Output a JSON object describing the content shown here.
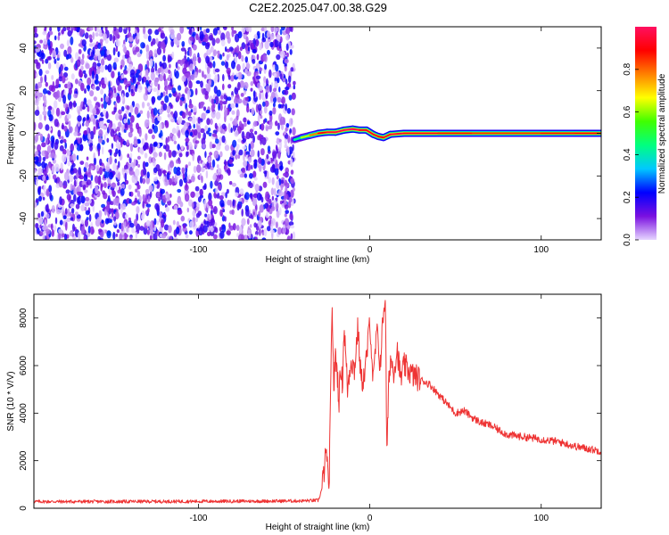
{
  "title": "C2E2.2025.047.00.38.G29",
  "chart_data": [
    {
      "type": "heatmap",
      "name": "spectrogram",
      "xlabel": "Height of straight line (km)",
      "ylabel": "Frequency (Hz)",
      "xlim": [
        -196,
        135
      ],
      "ylim": [
        -50,
        50
      ],
      "xticks": [
        -100,
        0,
        100
      ],
      "yticks": [
        -40,
        -20,
        0,
        20,
        40
      ],
      "grid": false,
      "noise_region_x": [
        -196,
        -44
      ],
      "noise_amplitude": [
        0.0,
        0.25
      ],
      "signal_track": {
        "x": [
          -44,
          -40,
          -35,
          -30,
          -25,
          -20,
          -15,
          -10,
          -6,
          -2,
          2,
          5,
          8,
          12,
          20,
          40,
          60,
          80,
          100,
          120,
          135
        ],
        "frequency": [
          -3,
          -2,
          -1,
          0,
          0.5,
          0.5,
          1.5,
          2,
          1.5,
          1.5,
          -0.5,
          -1.5,
          -2,
          -0.5,
          0,
          0,
          0,
          0,
          0,
          0,
          0
        ],
        "amplitude": [
          0.35,
          0.55,
          0.7,
          0.85,
          0.95,
          0.95,
          1.0,
          1.0,
          0.95,
          0.9,
          0.95,
          0.9,
          0.9,
          0.95,
          0.95,
          0.9,
          0.85,
          0.85,
          0.85,
          0.9,
          0.9
        ]
      },
      "colorbar": {
        "label": "Normalized spectral amplitude",
        "ticks": [
          0.0,
          0.2,
          0.4,
          0.6,
          0.8
        ],
        "range": [
          0,
          1
        ],
        "colors": [
          "#e6d6ff",
          "#7a10e0",
          "#0000ff",
          "#00c8ff",
          "#00ff80",
          "#40ff00",
          "#ffff00",
          "#ff8000",
          "#ff0000",
          "#ff1060"
        ]
      }
    },
    {
      "type": "line",
      "name": "snr",
      "xlabel": "Height of straight line (km)",
      "ylabel": "SNR (10 * V/V)",
      "xlim": [
        -196,
        135
      ],
      "ylim": [
        0,
        9000
      ],
      "xticks": [
        -100,
        0,
        100
      ],
      "yticks": [
        0,
        2000,
        4000,
        6000,
        8000
      ],
      "grid": false,
      "color": "#ee3333",
      "x": [
        -196,
        -150,
        -100,
        -60,
        -40,
        -30,
        -28,
        -26,
        -25,
        -24,
        -23,
        -22,
        -21,
        -20,
        -19,
        -18,
        -17,
        -16,
        -15,
        -13,
        -11,
        -9,
        -7,
        -5,
        -3,
        -1,
        0,
        2,
        4,
        6,
        8,
        9,
        10,
        11,
        12,
        14,
        16,
        18,
        20,
        25,
        30,
        35,
        40,
        45,
        50,
        55,
        60,
        65,
        70,
        75,
        80,
        90,
        100,
        110,
        120,
        135
      ],
      "y": [
        280,
        280,
        290,
        300,
        310,
        330,
        800,
        2000,
        2400,
        300,
        4000,
        8700,
        5000,
        6500,
        5700,
        4500,
        6000,
        5200,
        7700,
        5000,
        6300,
        5800,
        7600,
        5300,
        5600,
        7000,
        8000,
        5200,
        7500,
        6000,
        8300,
        9000,
        2000,
        5200,
        6300,
        5800,
        6700,
        5400,
        6000,
        5600,
        5400,
        5200,
        4800,
        4400,
        4000,
        4100,
        3800,
        3600,
        3500,
        3300,
        3100,
        3000,
        2900,
        2800,
        2600,
        2400
      ]
    }
  ]
}
